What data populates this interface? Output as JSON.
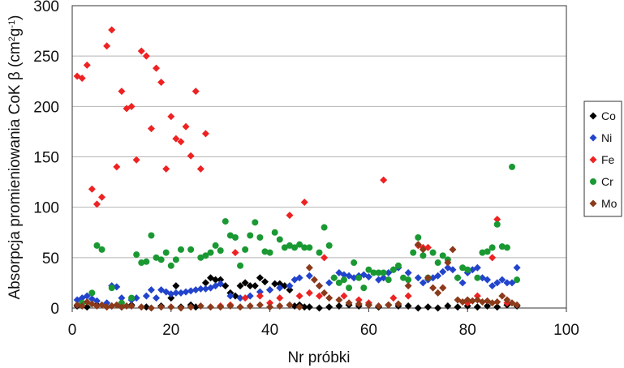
{
  "chart_data": {
    "type": "scatter",
    "xlabel": "Nr próbki",
    "ylabel_main": "Absorpcja promieniowania CoK β (cm",
    "ylabel_sup1": "2",
    "ylabel_mid": "g",
    "ylabel_sup2": "-1",
    "ylabel_end": ")",
    "xlim": [
      0,
      100
    ],
    "ylim": [
      0,
      300
    ],
    "xticks": [
      0,
      20,
      40,
      60,
      80,
      100
    ],
    "yticks": [
      0,
      50,
      100,
      150,
      200,
      250,
      300
    ],
    "grid": "horizontal",
    "legend_position": "right",
    "series": [
      {
        "name": "Co",
        "color": "#000000",
        "points": [
          [
            1,
            2
          ],
          [
            3,
            1
          ],
          [
            5,
            3
          ],
          [
            8,
            2
          ],
          [
            10,
            1
          ],
          [
            12,
            3
          ],
          [
            15,
            1
          ],
          [
            18,
            2
          ],
          [
            20,
            10
          ],
          [
            21,
            22
          ],
          [
            22,
            1
          ],
          [
            24,
            3
          ],
          [
            25,
            1
          ],
          [
            27,
            25
          ],
          [
            28,
            30
          ],
          [
            29,
            28
          ],
          [
            30,
            28
          ],
          [
            31,
            22
          ],
          [
            32,
            15
          ],
          [
            33,
            12
          ],
          [
            34,
            22
          ],
          [
            35,
            25
          ],
          [
            36,
            22
          ],
          [
            37,
            22
          ],
          [
            38,
            30
          ],
          [
            39,
            26
          ],
          [
            40,
            18
          ],
          [
            41,
            24
          ],
          [
            42,
            24
          ],
          [
            43,
            22
          ],
          [
            44,
            18
          ],
          [
            45,
            2
          ],
          [
            46,
            3
          ],
          [
            47,
            1
          ],
          [
            48,
            1
          ],
          [
            50,
            0
          ],
          [
            52,
            1
          ],
          [
            54,
            2
          ],
          [
            56,
            3
          ],
          [
            58,
            2
          ],
          [
            60,
            3
          ],
          [
            62,
            1
          ],
          [
            64,
            3
          ],
          [
            66,
            2
          ],
          [
            68,
            2
          ],
          [
            70,
            0
          ],
          [
            72,
            1
          ],
          [
            74,
            0
          ],
          [
            76,
            2
          ],
          [
            78,
            1
          ],
          [
            80,
            2
          ],
          [
            82,
            1
          ],
          [
            84,
            2
          ],
          [
            86,
            1
          ],
          [
            88,
            3
          ],
          [
            90,
            2
          ]
        ]
      },
      {
        "name": "Ni",
        "color": "#2244cc",
        "points": [
          [
            1,
            8
          ],
          [
            2,
            10
          ],
          [
            3,
            12
          ],
          [
            4,
            9
          ],
          [
            5,
            7
          ],
          [
            7,
            5
          ],
          [
            8,
            22
          ],
          [
            9,
            21
          ],
          [
            10,
            10
          ],
          [
            12,
            8
          ],
          [
            13,
            10
          ],
          [
            15,
            12
          ],
          [
            16,
            18
          ],
          [
            17,
            10
          ],
          [
            18,
            18
          ],
          [
            19,
            16
          ],
          [
            20,
            14
          ],
          [
            21,
            15
          ],
          [
            22,
            15
          ],
          [
            23,
            16
          ],
          [
            24,
            17
          ],
          [
            25,
            18
          ],
          [
            26,
            19
          ],
          [
            27,
            19
          ],
          [
            28,
            20
          ],
          [
            29,
            22
          ],
          [
            30,
            24
          ],
          [
            32,
            12
          ],
          [
            34,
            10
          ],
          [
            36,
            12
          ],
          [
            38,
            16
          ],
          [
            40,
            18
          ],
          [
            42,
            20
          ],
          [
            44,
            22
          ],
          [
            45,
            28
          ],
          [
            46,
            30
          ],
          [
            48,
            32
          ],
          [
            50,
            22
          ],
          [
            52,
            25
          ],
          [
            53,
            30
          ],
          [
            54,
            35
          ],
          [
            55,
            33
          ],
          [
            56,
            32
          ],
          [
            57,
            30
          ],
          [
            58,
            32
          ],
          [
            59,
            33
          ],
          [
            60,
            31
          ],
          [
            62,
            28
          ],
          [
            63,
            30
          ],
          [
            64,
            35
          ],
          [
            65,
            38
          ],
          [
            66,
            40
          ],
          [
            68,
            35
          ],
          [
            70,
            30
          ],
          [
            71,
            25
          ],
          [
            72,
            28
          ],
          [
            73,
            30
          ],
          [
            74,
            32
          ],
          [
            75,
            36
          ],
          [
            76,
            40
          ],
          [
            77,
            38
          ],
          [
            78,
            30
          ],
          [
            79,
            25
          ],
          [
            80,
            35
          ],
          [
            81,
            38
          ],
          [
            82,
            40
          ],
          [
            83,
            30
          ],
          [
            84,
            28
          ],
          [
            85,
            22
          ],
          [
            86,
            25
          ],
          [
            87,
            28
          ],
          [
            88,
            25
          ],
          [
            89,
            25
          ],
          [
            90,
            40
          ]
        ]
      },
      {
        "name": "Fe",
        "color": "#ee2222",
        "points": [
          [
            1,
            230
          ],
          [
            2,
            228
          ],
          [
            3,
            241
          ],
          [
            4,
            118
          ],
          [
            5,
            103
          ],
          [
            6,
            110
          ],
          [
            7,
            260
          ],
          [
            8,
            276
          ],
          [
            9,
            140
          ],
          [
            10,
            215
          ],
          [
            11,
            198
          ],
          [
            12,
            200
          ],
          [
            13,
            147
          ],
          [
            14,
            255
          ],
          [
            15,
            250
          ],
          [
            16,
            178
          ],
          [
            17,
            238
          ],
          [
            18,
            224
          ],
          [
            19,
            138
          ],
          [
            20,
            190
          ],
          [
            21,
            168
          ],
          [
            22,
            165
          ],
          [
            23,
            180
          ],
          [
            24,
            151
          ],
          [
            25,
            215
          ],
          [
            26,
            138
          ],
          [
            27,
            173
          ],
          [
            30,
            2
          ],
          [
            32,
            3
          ],
          [
            33,
            55
          ],
          [
            35,
            10
          ],
          [
            38,
            12
          ],
          [
            40,
            5
          ],
          [
            42,
            10
          ],
          [
            44,
            92
          ],
          [
            46,
            12
          ],
          [
            47,
            105
          ],
          [
            48,
            15
          ],
          [
            50,
            12
          ],
          [
            51,
            50
          ],
          [
            55,
            12
          ],
          [
            58,
            8
          ],
          [
            60,
            5
          ],
          [
            63,
            127
          ],
          [
            65,
            10
          ],
          [
            68,
            12
          ],
          [
            70,
            62
          ],
          [
            71,
            60
          ],
          [
            72,
            60
          ],
          [
            75,
            20
          ],
          [
            80,
            5
          ],
          [
            82,
            12
          ],
          [
            85,
            50
          ],
          [
            86,
            88
          ],
          [
            88,
            5
          ]
        ]
      },
      {
        "name": "Cr",
        "color": "#1a9933",
        "points": [
          [
            2,
            5
          ],
          [
            4,
            15
          ],
          [
            5,
            62
          ],
          [
            6,
            58
          ],
          [
            8,
            20
          ],
          [
            10,
            5
          ],
          [
            12,
            10
          ],
          [
            13,
            53
          ],
          [
            14,
            45
          ],
          [
            15,
            46
          ],
          [
            16,
            72
          ],
          [
            17,
            50
          ],
          [
            18,
            48
          ],
          [
            19,
            55
          ],
          [
            20,
            42
          ],
          [
            21,
            48
          ],
          [
            22,
            58
          ],
          [
            24,
            58
          ],
          [
            26,
            50
          ],
          [
            27,
            52
          ],
          [
            28,
            55
          ],
          [
            29,
            62
          ],
          [
            30,
            57
          ],
          [
            31,
            86
          ],
          [
            32,
            72
          ],
          [
            33,
            70
          ],
          [
            34,
            42
          ],
          [
            35,
            58
          ],
          [
            36,
            72
          ],
          [
            37,
            85
          ],
          [
            38,
            70
          ],
          [
            39,
            56
          ],
          [
            40,
            55
          ],
          [
            41,
            75
          ],
          [
            42,
            68
          ],
          [
            43,
            60
          ],
          [
            44,
            62
          ],
          [
            45,
            60
          ],
          [
            46,
            63
          ],
          [
            47,
            60
          ],
          [
            48,
            60
          ],
          [
            50,
            55
          ],
          [
            51,
            80
          ],
          [
            52,
            62
          ],
          [
            53,
            30
          ],
          [
            54,
            25
          ],
          [
            55,
            28
          ],
          [
            56,
            20
          ],
          [
            57,
            45
          ],
          [
            58,
            30
          ],
          [
            59,
            20
          ],
          [
            60,
            38
          ],
          [
            61,
            35
          ],
          [
            62,
            35
          ],
          [
            63,
            35
          ],
          [
            64,
            28
          ],
          [
            65,
            38
          ],
          [
            66,
            42
          ],
          [
            67,
            30
          ],
          [
            68,
            28
          ],
          [
            69,
            55
          ],
          [
            70,
            70
          ],
          [
            71,
            52
          ],
          [
            72,
            30
          ],
          [
            73,
            55
          ],
          [
            74,
            45
          ],
          [
            75,
            52
          ],
          [
            76,
            48
          ],
          [
            78,
            30
          ],
          [
            79,
            40
          ],
          [
            80,
            38
          ],
          [
            82,
            30
          ],
          [
            83,
            55
          ],
          [
            84,
            56
          ],
          [
            85,
            60
          ],
          [
            86,
            83
          ],
          [
            87,
            61
          ],
          [
            88,
            60
          ],
          [
            89,
            140
          ],
          [
            90,
            28
          ]
        ]
      },
      {
        "name": "Mo",
        "color": "#8b3a1a",
        "points": [
          [
            1,
            3
          ],
          [
            2,
            2
          ],
          [
            3,
            6
          ],
          [
            4,
            4
          ],
          [
            5,
            2
          ],
          [
            6,
            3
          ],
          [
            7,
            1
          ],
          [
            8,
            2
          ],
          [
            9,
            3
          ],
          [
            10,
            1
          ],
          [
            11,
            2
          ],
          [
            12,
            2
          ],
          [
            14,
            1
          ],
          [
            16,
            0
          ],
          [
            18,
            1
          ],
          [
            20,
            1
          ],
          [
            22,
            0
          ],
          [
            24,
            1
          ],
          [
            26,
            2
          ],
          [
            28,
            1
          ],
          [
            30,
            1
          ],
          [
            32,
            2
          ],
          [
            34,
            1
          ],
          [
            36,
            2
          ],
          [
            38,
            3
          ],
          [
            40,
            1
          ],
          [
            42,
            2
          ],
          [
            44,
            3
          ],
          [
            46,
            1
          ],
          [
            48,
            40
          ],
          [
            49,
            28
          ],
          [
            50,
            22
          ],
          [
            51,
            15
          ],
          [
            52,
            10
          ],
          [
            54,
            8
          ],
          [
            56,
            5
          ],
          [
            58,
            4
          ],
          [
            60,
            3
          ],
          [
            62,
            2
          ],
          [
            64,
            3
          ],
          [
            66,
            4
          ],
          [
            68,
            22
          ],
          [
            70,
            63
          ],
          [
            71,
            58
          ],
          [
            72,
            30
          ],
          [
            73,
            20
          ],
          [
            74,
            15
          ],
          [
            75,
            20
          ],
          [
            76,
            45
          ],
          [
            77,
            58
          ],
          [
            78,
            8
          ],
          [
            79,
            6
          ],
          [
            80,
            8
          ],
          [
            81,
            7
          ],
          [
            82,
            8
          ],
          [
            83,
            6
          ],
          [
            84,
            7
          ],
          [
            85,
            5
          ],
          [
            86,
            6
          ],
          [
            87,
            12
          ],
          [
            88,
            8
          ],
          [
            89,
            5
          ],
          [
            90,
            3
          ]
        ]
      }
    ]
  }
}
